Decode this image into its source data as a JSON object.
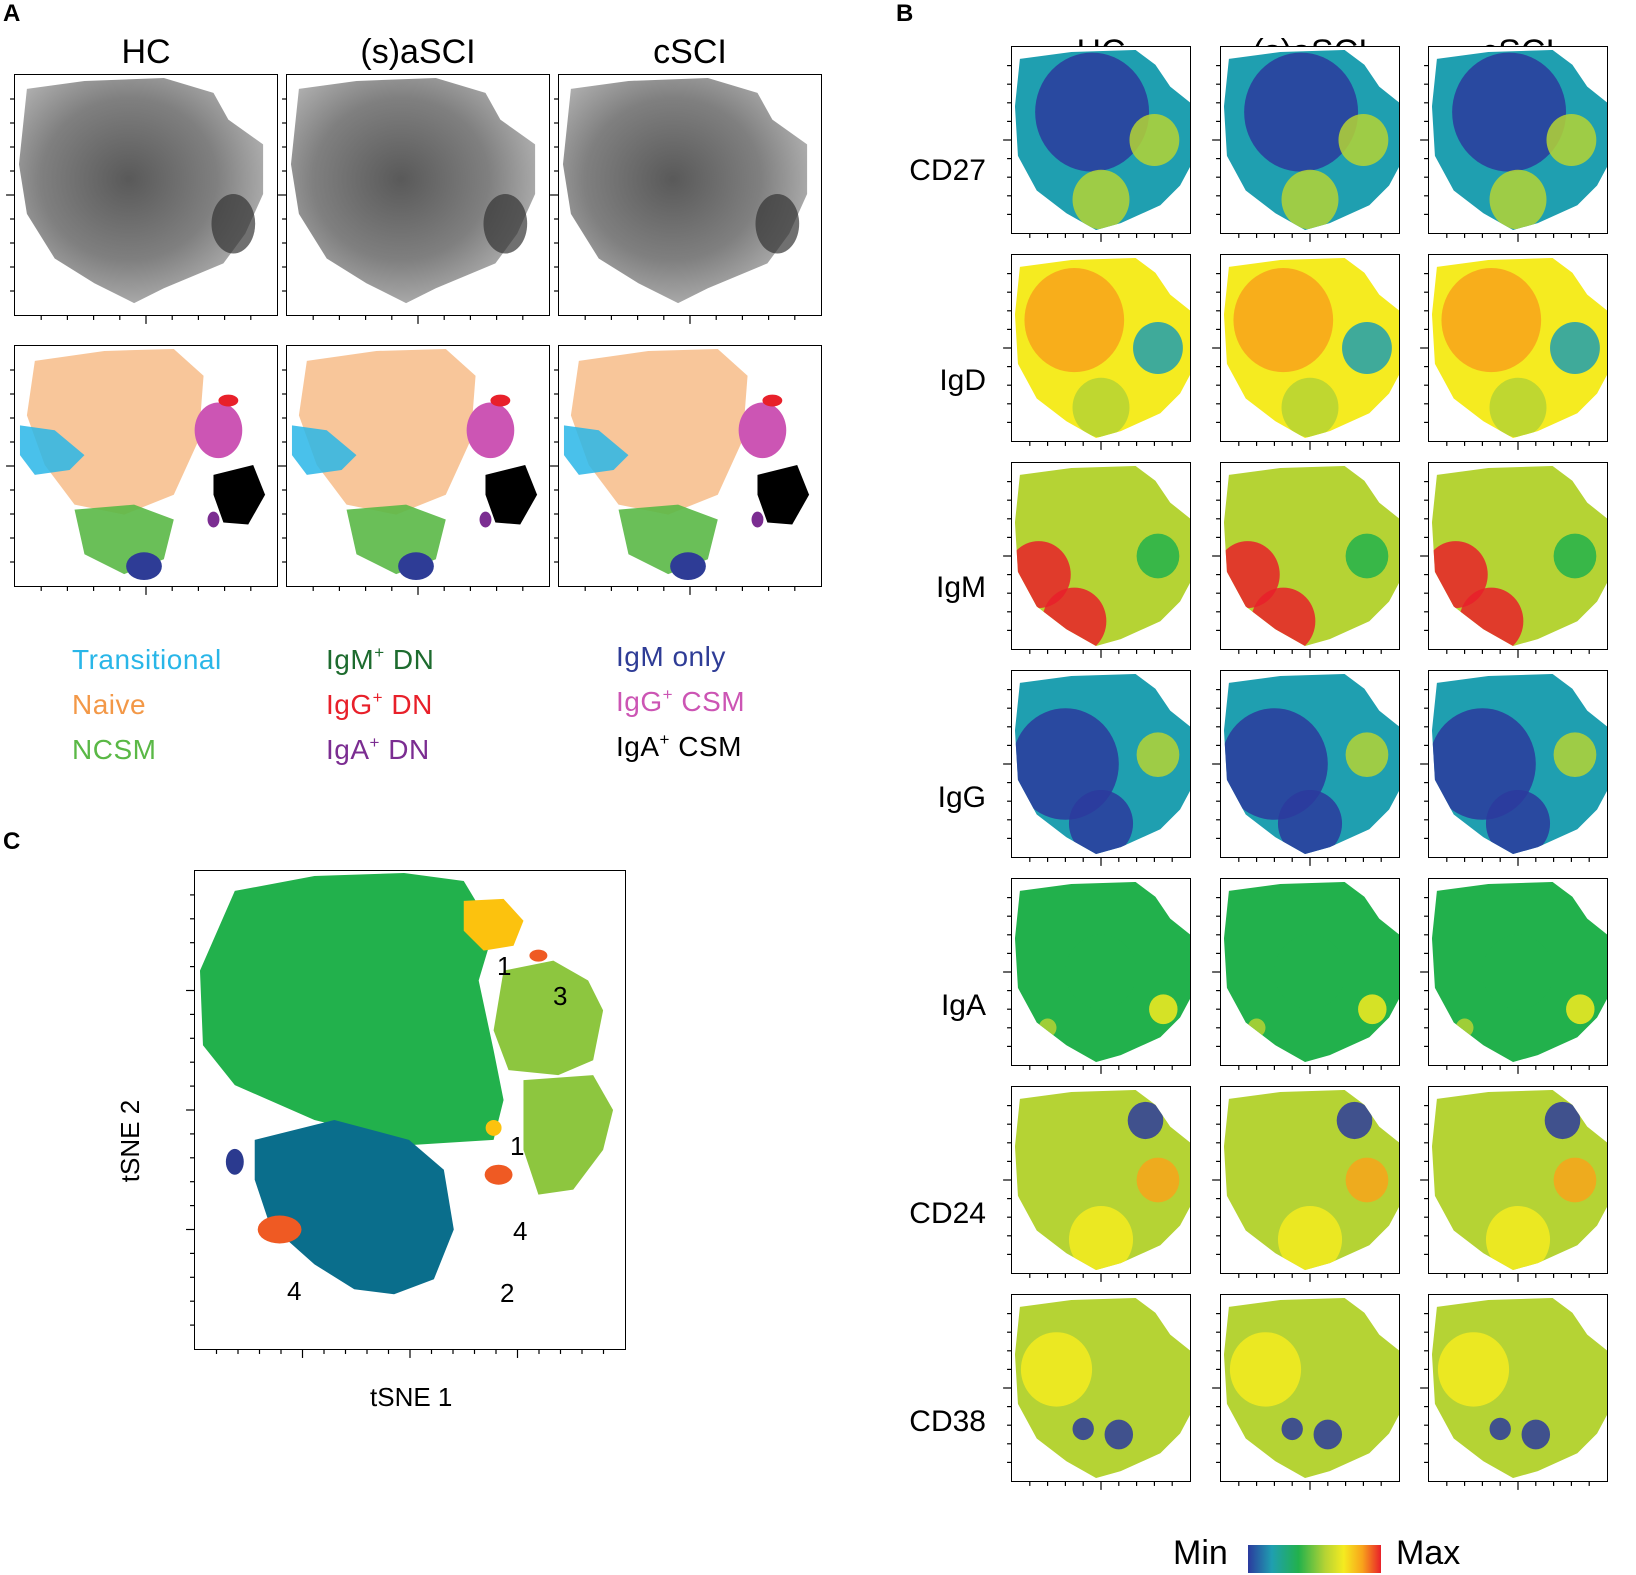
{
  "panels": {
    "a": "A",
    "b": "B",
    "c": "C"
  },
  "panel_a": {
    "columns": [
      "HC",
      "(s)aSCI",
      "cSCI"
    ],
    "legend": [
      {
        "base": "Transitional",
        "sup": "",
        "tail": "",
        "color": "#29b6e8"
      },
      {
        "base": "Naive",
        "sup": "",
        "tail": "",
        "color": "#f39847"
      },
      {
        "base": "NCSM",
        "sup": "",
        "tail": "",
        "color": "#5ab846"
      },
      {
        "base": "IgM",
        "sup": "+",
        "tail": " DN",
        "color": "#1d6b2e"
      },
      {
        "base": "IgG",
        "sup": "+",
        "tail": " DN",
        "color": "#e8202a"
      },
      {
        "base": "IgA",
        "sup": "+",
        "tail": " DN",
        "color": "#7b2d91"
      },
      {
        "base": "IgM only",
        "sup": "",
        "tail": "",
        "color": "#2e3c96"
      },
      {
        "base": "IgG",
        "sup": "+",
        "tail": " CSM",
        "color": "#cc55b4"
      },
      {
        "base": "IgA",
        "sup": "+",
        "tail": " CSM",
        "color": "#000000"
      }
    ]
  },
  "panel_b": {
    "columns": [
      "HC",
      "(s)aSCI",
      "cSCI"
    ],
    "rows": [
      "CD27",
      "IgD",
      "IgM",
      "IgG",
      "IgA",
      "CD24",
      "CD38"
    ],
    "colorbar": {
      "min_label": "Min",
      "max_label": "Max"
    }
  },
  "panel_c": {
    "xlabel": "tSNE 1",
    "ylabel": "tSNE 2",
    "cluster_labels": [
      "1",
      "3",
      "1",
      "4",
      "2",
      "4"
    ]
  },
  "colors": {
    "green": "#22b14c",
    "teal": "#0a6e8c",
    "lightgreen": "#8dc63f",
    "yellow": "#fcc20e",
    "orange": "#ef5a23",
    "navy": "#2b3a8f",
    "heat": [
      "#2b3a9e",
      "#1f9fb0",
      "#22b14c",
      "#b5d334",
      "#f5eb20",
      "#f8a31b",
      "#e8202a"
    ]
  }
}
